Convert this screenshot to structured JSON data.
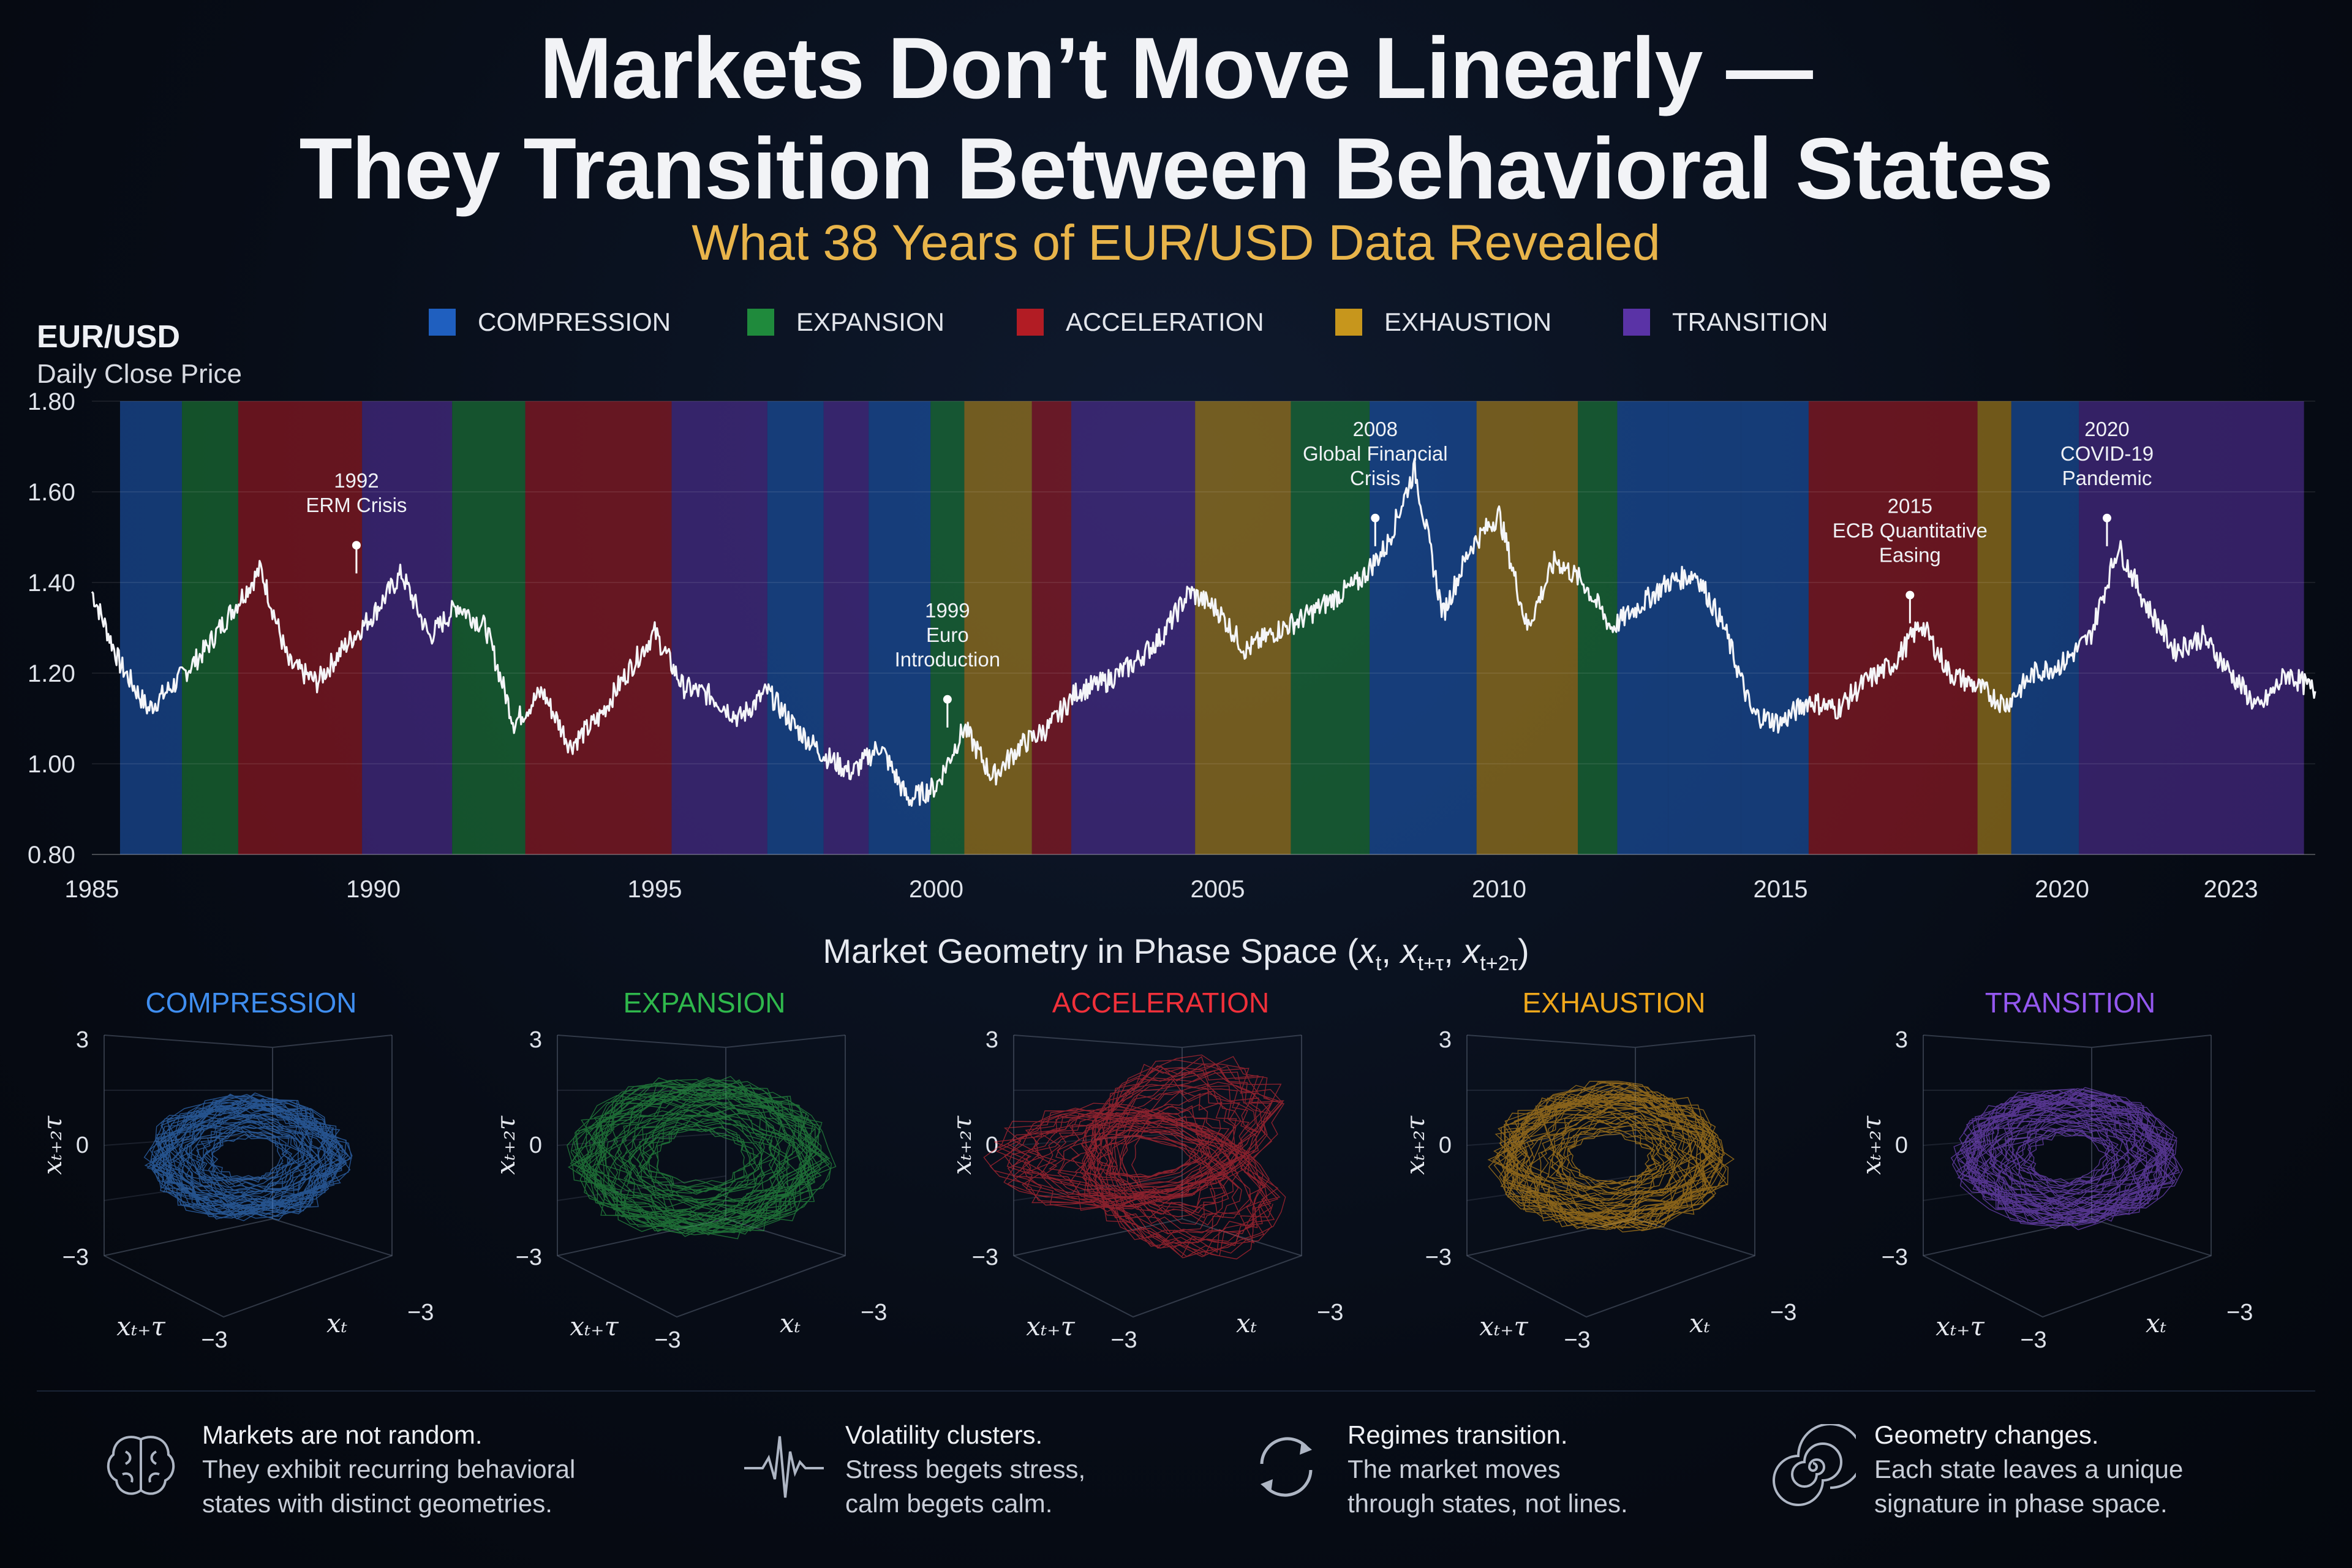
{
  "header": {
    "title_line1": "Markets Don’t Move Linearly —",
    "title_line2": "They Transition Between Behavioral States",
    "subtitle": "What 38 Years of EUR/USD Data Revealed"
  },
  "legend": [
    {
      "label": "COMPRESSION",
      "color": "#1f5fbf"
    },
    {
      "label": "EXPANSION",
      "color": "#1f8a3c"
    },
    {
      "label": "ACCELERATION",
      "color": "#b21c24"
    },
    {
      "label": "EXHAUSTION",
      "color": "#c7961c"
    },
    {
      "label": "TRANSITION",
      "color": "#5a33a6"
    }
  ],
  "chart_data": {
    "type": "line",
    "title": "EUR/USD",
    "ylabel": "Daily Close Price",
    "xlim": [
      1985,
      2024.5
    ],
    "ylim": [
      0.8,
      1.8
    ],
    "y_ticks": [
      "0.80",
      "1.00",
      "1.20",
      "1.40",
      "1.60",
      "1.80"
    ],
    "x_ticks": [
      "1985",
      "1990",
      "1995",
      "2000",
      "2005",
      "2010",
      "2015",
      "2020",
      "2023"
    ],
    "x_tick_values": [
      1985,
      1990,
      1995,
      2000,
      2005,
      2010,
      2015,
      2020,
      2023
    ],
    "series": [
      {
        "x": [
          1985.0,
          1985.5,
          1986.0,
          1986.5,
          1987.0,
          1987.5,
          1988.0,
          1988.5,
          1989.0,
          1989.5,
          1990.0,
          1990.5,
          1991.0,
          1991.5,
          1992.0,
          1992.5,
          1993.0,
          1993.5,
          1994.0,
          1994.5,
          1995.0,
          1995.5,
          1996.0,
          1996.5,
          1997.0,
          1997.5,
          1998.0,
          1998.5,
          1999.0,
          1999.5,
          2000.0,
          2000.5,
          2001.0,
          2001.5,
          2002.0,
          2002.5,
          2003.0,
          2003.5,
          2004.0,
          2004.5,
          2005.0,
          2005.5,
          2006.0,
          2006.5,
          2007.0,
          2007.5,
          2008.0,
          2008.5,
          2009.0,
          2009.5,
          2010.0,
          2010.5,
          2011.0,
          2011.5,
          2012.0,
          2012.5,
          2013.0,
          2013.5,
          2014.0,
          2014.5,
          2015.0,
          2015.5,
          2016.0,
          2016.5,
          2017.0,
          2017.5,
          2018.0,
          2018.5,
          2019.0,
          2019.5,
          2020.0,
          2020.5,
          2021.0,
          2021.5,
          2022.0,
          2022.5,
          2023.0,
          2023.5,
          2024.0,
          2024.5
        ],
        "values": [
          1.38,
          1.22,
          1.12,
          1.18,
          1.25,
          1.34,
          1.43,
          1.22,
          1.18,
          1.26,
          1.33,
          1.42,
          1.28,
          1.35,
          1.3,
          1.09,
          1.16,
          1.04,
          1.1,
          1.2,
          1.29,
          1.17,
          1.15,
          1.1,
          1.16,
          1.08,
          1.02,
          0.98,
          1.04,
          0.92,
          0.95,
          1.08,
          0.97,
          1.04,
          1.08,
          1.16,
          1.18,
          1.22,
          1.28,
          1.38,
          1.34,
          1.25,
          1.29,
          1.32,
          1.36,
          1.4,
          1.48,
          1.65,
          1.33,
          1.48,
          1.55,
          1.3,
          1.45,
          1.4,
          1.3,
          1.35,
          1.4,
          1.42,
          1.3,
          1.11,
          1.09,
          1.14,
          1.12,
          1.18,
          1.22,
          1.31,
          1.2,
          1.17,
          1.13,
          1.2,
          1.22,
          1.28,
          1.48,
          1.35,
          1.25,
          1.28,
          1.2,
          1.12,
          1.2,
          1.16
        ]
      }
    ],
    "regimes": [
      {
        "start": 1985.5,
        "end": 1986.6,
        "state": "COMPRESSION"
      },
      {
        "start": 1986.6,
        "end": 1987.6,
        "state": "EXPANSION"
      },
      {
        "start": 1987.6,
        "end": 1989.8,
        "state": "ACCELERATION"
      },
      {
        "start": 1989.8,
        "end": 1991.4,
        "state": "TRANSITION"
      },
      {
        "start": 1991.4,
        "end": 1992.7,
        "state": "EXPANSION"
      },
      {
        "start": 1992.7,
        "end": 1995.3,
        "state": "ACCELERATION"
      },
      {
        "start": 1995.3,
        "end": 1997.0,
        "state": "TRANSITION"
      },
      {
        "start": 1997.0,
        "end": 1998.0,
        "state": "COMPRESSION"
      },
      {
        "start": 1998.0,
        "end": 1998.8,
        "state": "TRANSITION"
      },
      {
        "start": 1998.8,
        "end": 1999.9,
        "state": "COMPRESSION"
      },
      {
        "start": 1999.9,
        "end": 2000.5,
        "state": "EXPANSION"
      },
      {
        "start": 2000.5,
        "end": 2001.7,
        "state": "EXHAUSTION"
      },
      {
        "start": 2001.7,
        "end": 2002.4,
        "state": "ACCELERATION"
      },
      {
        "start": 2002.4,
        "end": 2004.6,
        "state": "TRANSITION"
      },
      {
        "start": 2004.6,
        "end": 2006.3,
        "state": "EXHAUSTION"
      },
      {
        "start": 2006.3,
        "end": 2007.7,
        "state": "EXPANSION"
      },
      {
        "start": 2007.7,
        "end": 2009.6,
        "state": "COMPRESSION"
      },
      {
        "start": 2009.6,
        "end": 2011.4,
        "state": "EXHAUSTION"
      },
      {
        "start": 2011.4,
        "end": 2012.1,
        "state": "EXPANSION"
      },
      {
        "start": 2012.1,
        "end": 2013.0,
        "state": "COMPRESSION"
      },
      {
        "start": 2013.0,
        "end": 2014.3,
        "state": "COMPRESSION"
      },
      {
        "start": 2014.3,
        "end": 2015.5,
        "state": "COMPRESSION"
      },
      {
        "start": 2015.5,
        "end": 2018.5,
        "state": "ACCELERATION"
      },
      {
        "start": 2018.5,
        "end": 2019.1,
        "state": "EXHAUSTION"
      },
      {
        "start": 2019.1,
        "end": 2020.3,
        "state": "COMPRESSION"
      },
      {
        "start": 2020.3,
        "end": 2024.3,
        "state": "TRANSITION"
      }
    ],
    "annotations": [
      {
        "x": 1989.7,
        "y": 1.42,
        "year": "1992",
        "text": [
          "ERM Crisis"
        ]
      },
      {
        "x": 2000.2,
        "y": 1.08,
        "year": "1999",
        "text": [
          "Euro",
          "Introduction"
        ]
      },
      {
        "x": 2007.8,
        "y": 1.48,
        "year": "2008",
        "text": [
          "Global Financial",
          "Crisis"
        ]
      },
      {
        "x": 2017.3,
        "y": 1.31,
        "year": "2015",
        "text": [
          "ECB Quantitative",
          "Easing"
        ]
      },
      {
        "x": 2020.8,
        "y": 1.48,
        "year": "2020",
        "text": [
          "COVID-19",
          "Pandemic"
        ]
      }
    ]
  },
  "phase_space": {
    "title": "Market Geometry in Phase Space",
    "axis_labels": {
      "z_tick_top": "3",
      "z_tick_mid": "0",
      "z_tick_bottom": "−3",
      "x_tick": "−3",
      "y_tick": "−3"
    },
    "panels": [
      {
        "name": "COMPRESSION",
        "color": "#3f8ef0",
        "spread": 0.55
      },
      {
        "name": "EXPANSION",
        "color": "#2fb84c",
        "spread": 0.95
      },
      {
        "name": "ACCELERATION",
        "color": "#f0303a",
        "spread": 0.85
      },
      {
        "name": "EXHAUSTION",
        "color": "#f0a81c",
        "spread": 0.8
      },
      {
        "name": "TRANSITION",
        "color": "#9458f0",
        "spread": 0.7
      }
    ]
  },
  "footer": [
    {
      "icon": "brain-icon",
      "head": "Markets are not random.",
      "body1": "They exhibit recurring behavioral",
      "body2": "states with distinct geometries."
    },
    {
      "icon": "pulse-icon",
      "head": "Volatility clusters.",
      "body1": "Stress begets stress,",
      "body2": "calm begets calm."
    },
    {
      "icon": "cycle-arrows-icon",
      "head": "Regimes transition.",
      "body1": "The market moves",
      "body2": "through states, not lines."
    },
    {
      "icon": "spiral-icon",
      "head": "Geometry changes.",
      "body1": "Each state leaves a unique",
      "body2": "signature in phase space."
    }
  ]
}
